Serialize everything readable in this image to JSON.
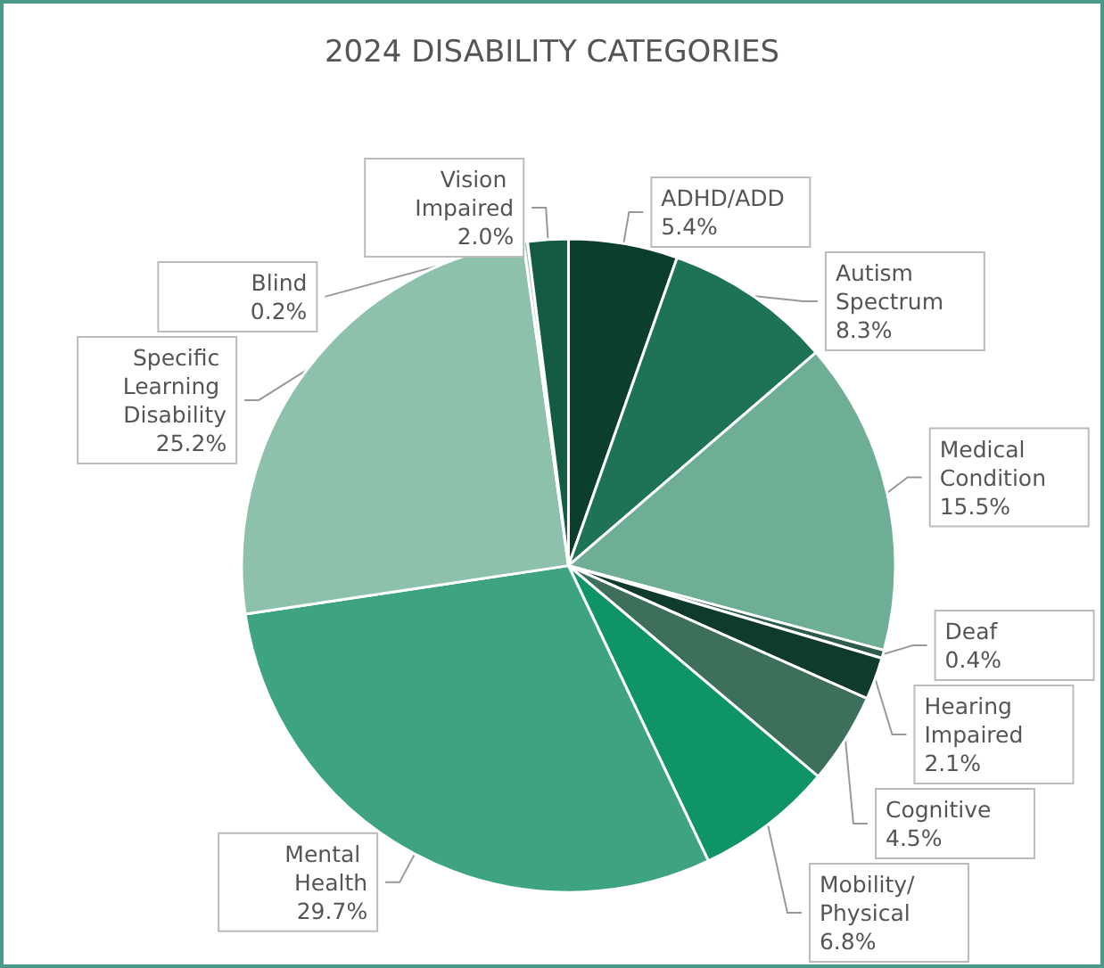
{
  "chart_data": {
    "type": "pie",
    "title": "2024 DISABILITY CATEGORIES",
    "categories": [
      "ADHD/ADD",
      "Autism Spectrum",
      "Medical Condition",
      "Deaf",
      "Hearing Impaired",
      "Cognitive",
      "Mobility/Physical",
      "Mental Health",
      "Specific Learning Disability",
      "Blind",
      "Vision Impaired"
    ],
    "values": [
      5.4,
      8.3,
      15.5,
      0.4,
      2.1,
      4.5,
      6.8,
      29.7,
      25.2,
      0.2,
      2.0
    ],
    "value_labels": [
      "5.4%",
      "8.3%",
      "15.5%",
      "0.4%",
      "2.1%",
      "4.5%",
      "6.8%",
      "29.7%",
      "25.2%",
      "0.2%",
      "2.0%"
    ],
    "colors": [
      "#0b3f2c",
      "#1e7357",
      "#6dae95",
      "#2d5c4a",
      "#0f3b2c",
      "#3e6f5b",
      "#0e9468",
      "#3da47f",
      "#8dc1ab",
      "#9fc9b6",
      "#145c41"
    ],
    "legend": false
  }
}
